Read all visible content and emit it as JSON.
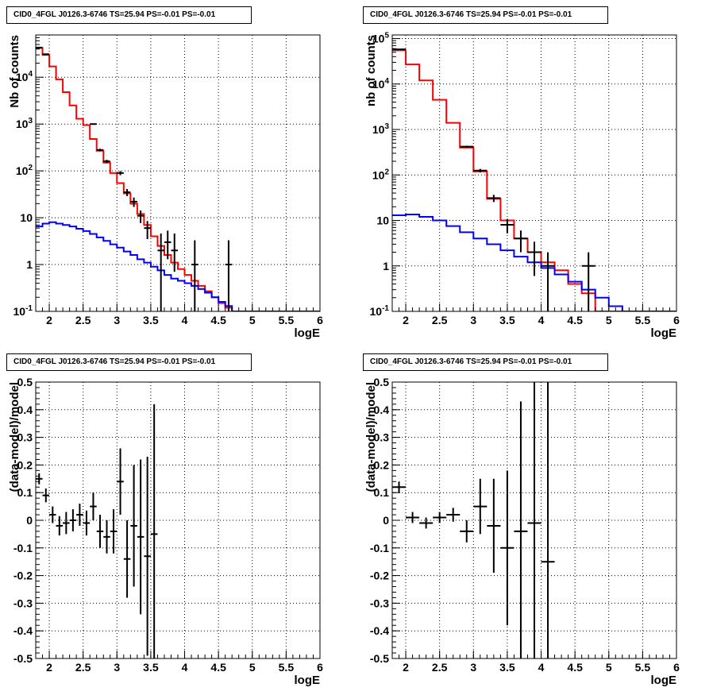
{
  "colors": {
    "data": "#000000",
    "total_model": "#ff0000",
    "source_model": "#0000ff",
    "grid": "#000000"
  },
  "chart_data": [
    {
      "type": "line",
      "title": "CID0_4FGL J0126.3-6746 TS=25.94 PS=-0.01 PS=-0.01",
      "xlabel": "logE",
      "ylabel": "Nb of counts",
      "yscale": "log",
      "xlim": [
        1.8,
        6
      ],
      "ylim": [
        0.1,
        80000
      ],
      "xticks": [
        "2",
        "2.5",
        "3",
        "3.5",
        "4",
        "4.5",
        "5",
        "5.5",
        "6"
      ],
      "yticks": [
        "10^-1",
        "1",
        "10",
        "10^2",
        "10^3",
        "10^4"
      ],
      "grid": true,
      "bin_width": 0.1,
      "series": [
        {
          "style": "step",
          "color": "#ff0000",
          "x": [
            1.85,
            1.95,
            2.05,
            2.15,
            2.25,
            2.35,
            2.45,
            2.55,
            2.65,
            2.75,
            2.85,
            2.95,
            3.05,
            3.15,
            3.25,
            3.35,
            3.45,
            3.55,
            3.65,
            3.75,
            3.85,
            3.95,
            4.05,
            4.15,
            4.25,
            4.35,
            4.45,
            4.55,
            4.65,
            4.75,
            4.85,
            4.95,
            5.05,
            5.15,
            5.25,
            5.35,
            5.45,
            5.55,
            5.65,
            5.75,
            5.85,
            5.95
          ],
          "y": [
            42000,
            30000,
            17000,
            9000,
            4800,
            2500,
            1300,
            950,
            480,
            270,
            150,
            90,
            55,
            33,
            20,
            12,
            7,
            4,
            2.5,
            1.6,
            1.1,
            0.8,
            0.6,
            0.45,
            0.35,
            0.27,
            0.2,
            0.15,
            0.12,
            0.1,
            0.1,
            0.1,
            0.1,
            0.1,
            0.1,
            0.1,
            0.1,
            0.1,
            0.1,
            0.1,
            0.1,
            0.1
          ]
        },
        {
          "style": "step",
          "color": "#0000ff",
          "x": [
            1.85,
            1.95,
            2.05,
            2.15,
            2.25,
            2.35,
            2.45,
            2.55,
            2.65,
            2.75,
            2.85,
            2.95,
            3.05,
            3.15,
            3.25,
            3.35,
            3.45,
            3.55,
            3.65,
            3.75,
            3.85,
            3.95,
            4.05,
            4.15,
            4.25,
            4.35,
            4.45,
            4.55,
            4.65,
            4.75,
            4.85,
            4.95,
            5.05,
            5.15,
            5.25,
            5.35,
            5.45,
            5.55,
            5.65,
            5.75,
            5.85,
            5.95
          ],
          "y": [
            6.5,
            7.5,
            8,
            7.5,
            7,
            6.5,
            5.8,
            5.2,
            4.5,
            3.8,
            3.2,
            2.7,
            2.3,
            1.9,
            1.6,
            1.3,
            1.1,
            0.9,
            0.75,
            0.6,
            0.5,
            0.45,
            0.4,
            0.35,
            0.3,
            0.25,
            0.2,
            0.16,
            0.13,
            0.1,
            0.1,
            0.1,
            0.1,
            0.1,
            0.1,
            0.1,
            0.1,
            0.1,
            0.1,
            0.1,
            0.1,
            0.1
          ]
        },
        {
          "style": "errorbar",
          "color": "#000000",
          "x": [
            1.85,
            1.95,
            2.65,
            2.75,
            2.85,
            3.05,
            3.15,
            3.25,
            3.35,
            3.45,
            3.65,
            3.75,
            3.85,
            4.15,
            4.65
          ],
          "y": [
            43000,
            31000,
            1000,
            280,
            160,
            90,
            35,
            22,
            11,
            6,
            2,
            3,
            2,
            1,
            1
          ],
          "yerr_low": [
            200,
            170,
            30,
            17,
            13,
            9,
            6,
            5,
            3.3,
            2.5,
            1.99,
            1.7,
            1.3,
            0.99,
            0.99
          ],
          "yerr_high": [
            200,
            170,
            30,
            17,
            13,
            9,
            6,
            5,
            3.3,
            2.5,
            2.6,
            2.3,
            2.6,
            2.3,
            2.3
          ]
        }
      ]
    },
    {
      "type": "line",
      "title": "CID0_4FGL J0126.3-6746 TS=25.94 PS=-0.01 PS=-0.01",
      "xlabel": "logE",
      "ylabel": "nb of counts",
      "yscale": "log",
      "xlim": [
        1.8,
        6
      ],
      "ylim": [
        0.1,
        120000
      ],
      "xticks": [
        "2",
        "2.5",
        "3",
        "3.5",
        "4",
        "4.5",
        "5",
        "5.5",
        "6"
      ],
      "yticks": [
        "10^-1",
        "1",
        "10",
        "10^2",
        "10^3",
        "10^4",
        "10^5"
      ],
      "grid": true,
      "bin_width": 0.2,
      "series": [
        {
          "style": "step",
          "color": "#ff0000",
          "x": [
            1.9,
            2.1,
            2.3,
            2.5,
            2.7,
            2.9,
            3.1,
            3.3,
            3.5,
            3.7,
            3.9,
            4.1,
            4.3,
            4.5,
            4.7,
            4.9,
            5.1,
            5.3,
            5.5,
            5.7,
            5.9
          ],
          "y": [
            55000,
            27000,
            12000,
            4500,
            1400,
            400,
            120,
            30,
            10,
            4,
            2,
            1.2,
            0.8,
            0.4,
            0.25,
            0.1,
            0.1,
            0.1,
            0.1,
            0.1,
            0.1
          ]
        },
        {
          "style": "step",
          "color": "#0000ff",
          "x": [
            1.9,
            2.1,
            2.3,
            2.5,
            2.7,
            2.9,
            3.1,
            3.3,
            3.5,
            3.7,
            3.9,
            4.1,
            4.3,
            4.5,
            4.7,
            4.9,
            5.1,
            5.3,
            5.5,
            5.7,
            5.9
          ],
          "y": [
            13,
            13.5,
            12,
            10,
            7.5,
            5.5,
            4,
            3,
            2.2,
            1.6,
            1.2,
            0.9,
            0.65,
            0.45,
            0.3,
            0.2,
            0.13,
            0.1,
            0.1,
            0.1,
            0.1
          ]
        },
        {
          "style": "errorbar",
          "color": "#000000",
          "x": [
            1.9,
            2.9,
            3.1,
            3.3,
            3.5,
            3.7,
            3.9,
            4.1,
            4.7
          ],
          "y": [
            58000,
            420,
            125,
            31,
            8,
            4,
            2,
            1,
            1
          ],
          "yerr_low": [
            240,
            20,
            11,
            5.6,
            2.8,
            2,
            1.4,
            0.99,
            0.99
          ],
          "yerr_high": [
            240,
            20,
            11,
            5.6,
            2.8,
            2,
            1.4,
            0.99,
            0.99
          ]
        }
      ]
    },
    {
      "type": "scatter",
      "title": "CID0_4FGL J0126.3-6746 TS=25.94 PS=-0.01 PS=-0.01",
      "xlabel": "logE",
      "ylabel": "(data-model)/model",
      "yscale": "linear",
      "xlim": [
        1.8,
        6
      ],
      "ylim": [
        -0.5,
        0.5
      ],
      "xticks": [
        "2",
        "2.5",
        "3",
        "3.5",
        "4",
        "4.5",
        "5",
        "5.5",
        "6"
      ],
      "yticks": [
        "-0.5",
        "-0.4",
        "-0.3",
        "-0.2",
        "-0.1",
        "0",
        "0.1",
        "0.2",
        "0.3",
        "0.4",
        "0.5"
      ],
      "grid": true,
      "bin_width": 0.1,
      "series": [
        {
          "style": "errorbar",
          "color": "#000000",
          "x": [
            1.85,
            1.95,
            2.05,
            2.15,
            2.25,
            2.35,
            2.45,
            2.55,
            2.65,
            2.75,
            2.85,
            2.95,
            3.05,
            3.15,
            3.25,
            3.35,
            3.45,
            3.55
          ],
          "y": [
            0.15,
            0.09,
            0.02,
            -0.02,
            -0.01,
            0,
            0.02,
            -0.01,
            0.05,
            -0.04,
            -0.06,
            -0.04,
            0.14,
            -0.14,
            -0.02,
            -0.06,
            -0.13,
            -0.05
          ],
          "yerr": [
            0.02,
            0.025,
            0.03,
            0.035,
            0.04,
            0.04,
            0.04,
            0.045,
            0.05,
            0.06,
            0.06,
            0.08,
            0.12,
            0.14,
            0.22,
            0.28,
            0.36,
            0.47
          ]
        }
      ]
    },
    {
      "type": "scatter",
      "title": "CID0_4FGL J0126.3-6746 TS=25.94 PS=-0.01 PS=-0.01",
      "xlabel": "logE",
      "ylabel": "(data-model)/model",
      "yscale": "linear",
      "xlim": [
        1.8,
        6
      ],
      "ylim": [
        -0.5,
        0.5
      ],
      "xticks": [
        "2",
        "2.5",
        "3",
        "3.5",
        "4",
        "4.5",
        "5",
        "5.5",
        "6"
      ],
      "yticks": [
        "-0.5",
        "-0.4",
        "-0.3",
        "-0.2",
        "-0.1",
        "0",
        "0.1",
        "0.2",
        "0.3",
        "0.4",
        "0.5"
      ],
      "grid": true,
      "bin_width": 0.2,
      "series": [
        {
          "style": "errorbar",
          "color": "#000000",
          "x": [
            1.9,
            2.1,
            2.3,
            2.5,
            2.7,
            2.9,
            3.1,
            3.3,
            3.5,
            3.7,
            3.9,
            4.1
          ],
          "y": [
            0.12,
            0.01,
            -0.01,
            0.01,
            0.02,
            -0.04,
            0.05,
            -0.02,
            -0.1,
            -0.04,
            -0.01,
            -0.15
          ],
          "yerr": [
            0.02,
            0.02,
            0.02,
            0.02,
            0.025,
            0.04,
            0.1,
            0.17,
            0.28,
            0.47,
            0.6,
            0.7
          ]
        }
      ]
    }
  ]
}
